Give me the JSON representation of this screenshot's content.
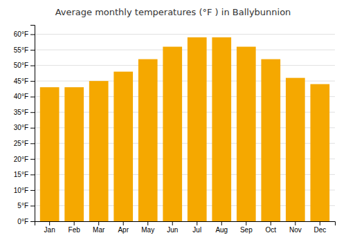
{
  "chart_data": {
    "type": "bar",
    "title": "Average monthly temperatures (°F ) in Ballybunnion",
    "categories": [
      "Jan",
      "Feb",
      "Mar",
      "Apr",
      "May",
      "Jun",
      "Jul",
      "Aug",
      "Sep",
      "Oct",
      "Nov",
      "Dec"
    ],
    "values": [
      43,
      43,
      45,
      48,
      52,
      56,
      59,
      59,
      56,
      52,
      46,
      44
    ],
    "color": "#F5A800",
    "ylim": [
      0,
      63
    ],
    "yticks": [
      {
        "value": 0,
        "label": "0°F"
      },
      {
        "value": 5,
        "label": "5°F"
      },
      {
        "value": 10,
        "label": "10°F"
      },
      {
        "value": 15,
        "label": "15°F"
      },
      {
        "value": 20,
        "label": "20°F"
      },
      {
        "value": 25,
        "label": "25°F"
      },
      {
        "value": 30,
        "label": "30°F"
      },
      {
        "value": 35,
        "label": "35°F"
      },
      {
        "value": 40,
        "label": "40°F"
      },
      {
        "value": 45,
        "label": "45°F"
      },
      {
        "value": 50,
        "label": "50°F"
      },
      {
        "value": 55,
        "label": "55°F"
      },
      {
        "value": 60,
        "label": "60°F"
      }
    ],
    "grid": true
  }
}
